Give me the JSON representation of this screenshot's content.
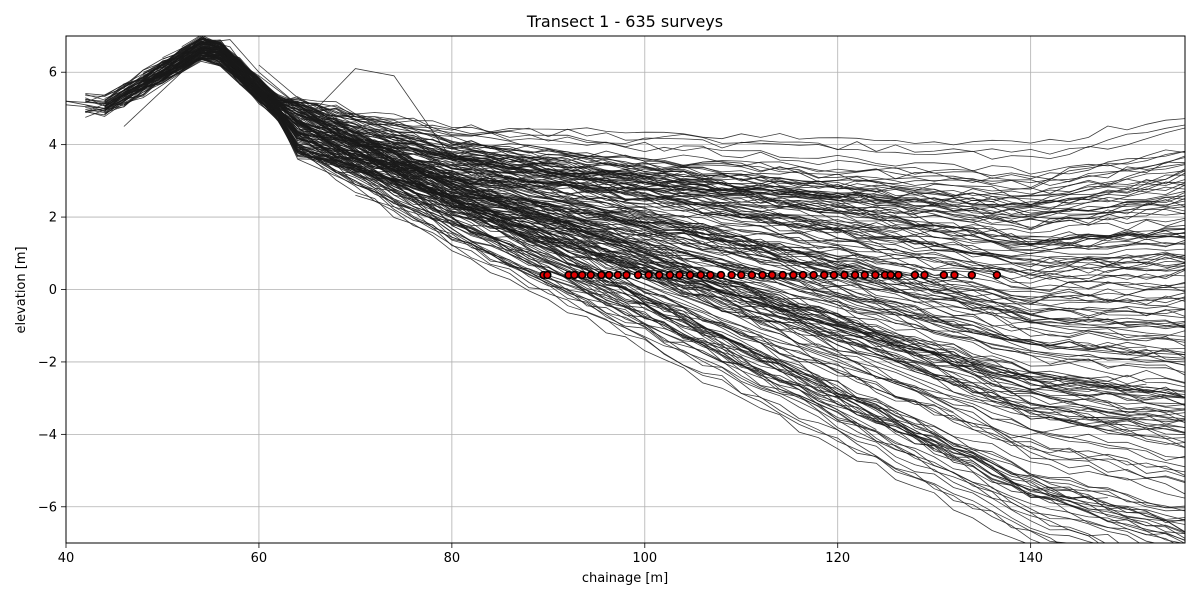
{
  "chart_data": {
    "type": "line",
    "title": "Transect 1  - 635 surveys",
    "xlabel": "chainage [m]",
    "ylabel": "elevation [m]",
    "xlim": [
      40,
      156
    ],
    "ylim": [
      -7,
      7
    ],
    "xticks": [
      40,
      60,
      80,
      100,
      120,
      140
    ],
    "yticks": [
      -6,
      -4,
      -2,
      0,
      2,
      4,
      6
    ],
    "xtick_labels": [
      "40",
      "60",
      "80",
      "100",
      "120",
      "140"
    ],
    "ytick_labels": [
      "−6",
      "−4",
      "−2",
      "0",
      "2",
      "4",
      "6"
    ],
    "grid": true,
    "survey_count": 635,
    "profile_color": "#1a1a1a",
    "marker_color": "#e00000",
    "marker_edge_color": "#000000",
    "shoreline_elevation": 0.4,
    "shoreline_chainages": [
      89.5,
      89.9,
      92.1,
      92.7,
      93.5,
      94.4,
      95.5,
      96.3,
      97.2,
      98.1,
      99.3,
      100.4,
      101.5,
      102.6,
      103.6,
      104.7,
      105.8,
      106.8,
      107.9,
      109.0,
      110.0,
      111.1,
      112.2,
      113.2,
      114.3,
      115.4,
      116.4,
      117.5,
      118.6,
      119.6,
      120.7,
      121.8,
      122.8,
      123.9,
      124.9,
      125.5,
      126.3,
      128.0,
      129.0,
      131.0,
      132.1,
      133.9,
      136.5
    ],
    "representative_profiles": [
      {
        "x": [
          40,
          44,
          48,
          52,
          55,
          58,
          62,
          66,
          70,
          76,
          84,
          92,
          100,
          108,
          116,
          124,
          132,
          140,
          148,
          156
        ],
        "y": [
          5.2,
          5.0,
          5.5,
          6.3,
          6.8,
          6.1,
          5.0,
          4.0,
          3.4,
          2.8,
          2.2,
          1.6,
          1.0,
          0.4,
          -0.2,
          -0.8,
          -1.3,
          -1.7,
          -1.9,
          -2.0
        ]
      },
      {
        "x": [
          40,
          44,
          48,
          52,
          55,
          58,
          62,
          66,
          70,
          76,
          84,
          92,
          100,
          108,
          116,
          124,
          132,
          140,
          148,
          156
        ],
        "y": [
          5.1,
          5.0,
          5.3,
          6.0,
          6.6,
          6.4,
          5.2,
          4.3,
          3.6,
          3.0,
          2.5,
          1.9,
          1.3,
          0.7,
          0.1,
          -0.5,
          -1.1,
          -1.5,
          -1.7,
          -1.8
        ]
      },
      {
        "x": [
          40,
          46,
          50,
          54,
          57,
          60,
          64,
          68,
          72,
          78,
          86,
          94,
          102,
          110,
          118,
          126,
          134,
          142,
          150,
          156
        ],
        "y": [
          5.2,
          5.1,
          5.8,
          6.9,
          6.7,
          5.6,
          4.6,
          3.8,
          3.2,
          2.6,
          1.9,
          1.2,
          0.5,
          -0.2,
          -0.9,
          -1.6,
          -2.2,
          -2.6,
          -2.9,
          -3.0
        ]
      },
      {
        "x": [
          46,
          52,
          55,
          58,
          62,
          66,
          70,
          76,
          84,
          92,
          100,
          108,
          116,
          124,
          132,
          140,
          148,
          156
        ],
        "y": [
          4.5,
          6.0,
          6.5,
          6.2,
          5.0,
          4.0,
          3.3,
          2.7,
          2.0,
          1.4,
          0.8,
          0.1,
          -0.6,
          -1.3,
          -1.9,
          -2.4,
          -2.7,
          -2.9
        ]
      },
      {
        "x": [
          54,
          57,
          60,
          64,
          68,
          72,
          78,
          86,
          94,
          102,
          110,
          118,
          126,
          134,
          142,
          150,
          156
        ],
        "y": [
          6.8,
          6.9,
          6.0,
          5.1,
          4.4,
          3.6,
          3.1,
          2.6,
          2.1,
          1.6,
          0.9,
          0.3,
          -0.5,
          -1.2,
          -1.6,
          -1.8,
          -1.9
        ]
      },
      {
        "x": [
          56,
          60,
          64,
          68,
          72,
          80,
          88,
          96,
          104,
          112,
          120,
          128,
          136,
          144,
          152,
          156
        ],
        "y": [
          6.6,
          5.9,
          5.1,
          4.3,
          3.5,
          2.8,
          2.1,
          1.4,
          0.6,
          -0.2,
          -0.9,
          -1.6,
          -2.1,
          -2.5,
          -2.7,
          -2.8
        ]
      },
      {
        "x": [
          64,
          70,
          76,
          82,
          88,
          96,
          104,
          112,
          120,
          128,
          136,
          144,
          152,
          156
        ],
        "y": [
          3.6,
          2.9,
          2.3,
          1.7,
          1.0,
          0.2,
          -0.6,
          -1.4,
          -2.1,
          -2.7,
          -3.2,
          -3.5,
          -3.6,
          -3.6
        ]
      },
      {
        "x": [
          70,
          80,
          90,
          100,
          110,
          120,
          130,
          138,
          146,
          156
        ],
        "y": [
          2.6,
          1.8,
          0.9,
          0.0,
          -1.0,
          -2.0,
          -3.0,
          -4.1,
          -3.7,
          -3.4
        ]
      },
      {
        "x": [
          60,
          64,
          68,
          72,
          76,
          82,
          88,
          96,
          104,
          112,
          120,
          128,
          136,
          144,
          152,
          156
        ],
        "y": [
          6.2,
          5.3,
          4.6,
          4.1,
          3.6,
          3.1,
          2.6,
          2.2,
          1.7,
          1.1,
          0.4,
          -0.2,
          -0.7,
          -1.1,
          -1.3,
          -1.4
        ]
      },
      {
        "x": [
          66,
          70,
          74,
          80,
          88,
          96,
          104,
          112,
          120,
          128,
          136,
          144,
          152,
          156
        ],
        "y": [
          5.0,
          6.1,
          5.9,
          3.6,
          2.9,
          2.4,
          1.9,
          1.3,
          0.7,
          0.1,
          -0.5,
          -0.9,
          -1.2,
          -1.3
        ]
      }
    ]
  }
}
